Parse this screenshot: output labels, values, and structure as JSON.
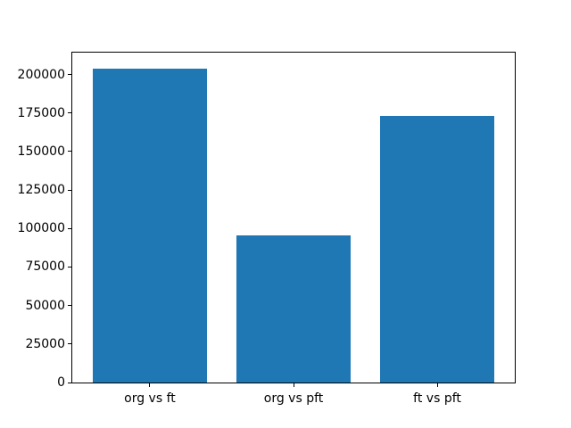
{
  "chart_data": {
    "type": "bar",
    "title": "",
    "xlabel": "",
    "ylabel": "",
    "categories": [
      "org vs ft",
      "org vs pft",
      "ft vs pft"
    ],
    "values": [
      204000,
      95500,
      173000
    ],
    "ylim": [
      0,
      214200
    ],
    "ytick_values": [
      0,
      25000,
      50000,
      75000,
      100000,
      125000,
      150000,
      175000,
      200000
    ],
    "ytick_labels": [
      "0",
      "25000",
      "50000",
      "75000",
      "100000",
      "125000",
      "150000",
      "175000",
      "200000"
    ],
    "bar_color": "#1f77b4",
    "bar_width_fraction": 0.8,
    "x_margin_fraction": 0.05,
    "grid": false,
    "legend_position": "none",
    "background_color": "#ffffff",
    "spine_color": "#000000"
  }
}
